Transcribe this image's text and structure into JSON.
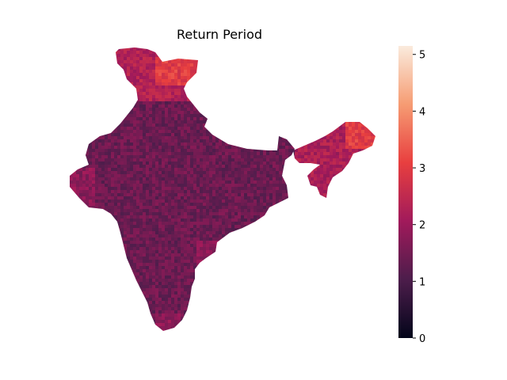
{
  "chart_data": {
    "type": "heatmap",
    "title": "Return Period",
    "xlabel": "",
    "ylabel": "",
    "grid": false,
    "description_values": {
      "min": 0,
      "max": 5.15,
      "typical_mainland": 1.4,
      "south_west_coast": 1.8,
      "north_kashmir": 2.3,
      "north_hotspot": 3.0,
      "east_northeast": 2.2,
      "northeast_hotspot": 3.0
    },
    "colorbar": {
      "ticks": [
        0,
        1,
        2,
        3,
        4,
        5
      ],
      "tick_labels": [
        "0",
        "1",
        "2",
        "3",
        "4",
        "5"
      ],
      "range": [
        0,
        5.15
      ],
      "colors": [
        "#03051a",
        "#4c1d4b",
        "#a11a5b",
        "#e83f3f",
        "#f69c73",
        "#faebdd"
      ]
    }
  }
}
